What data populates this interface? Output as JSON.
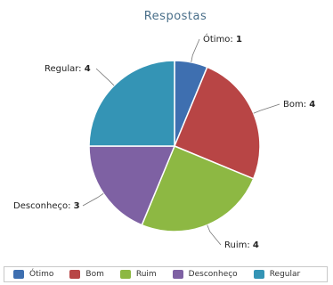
{
  "chart_data": {
    "type": "pie",
    "title": "Respostas",
    "slices": [
      {
        "label": "Ótimo",
        "value": 1,
        "color": "#3e6fb0"
      },
      {
        "label": "Bom",
        "value": 4,
        "color": "#b84545"
      },
      {
        "label": "Ruim",
        "value": 4,
        "color": "#8db843"
      },
      {
        "label": "Desconheço",
        "value": 3,
        "color": "#7e61a3"
      },
      {
        "label": "Regular",
        "value": 4,
        "color": "#3494b5"
      }
    ],
    "legend_position": "bottom"
  }
}
